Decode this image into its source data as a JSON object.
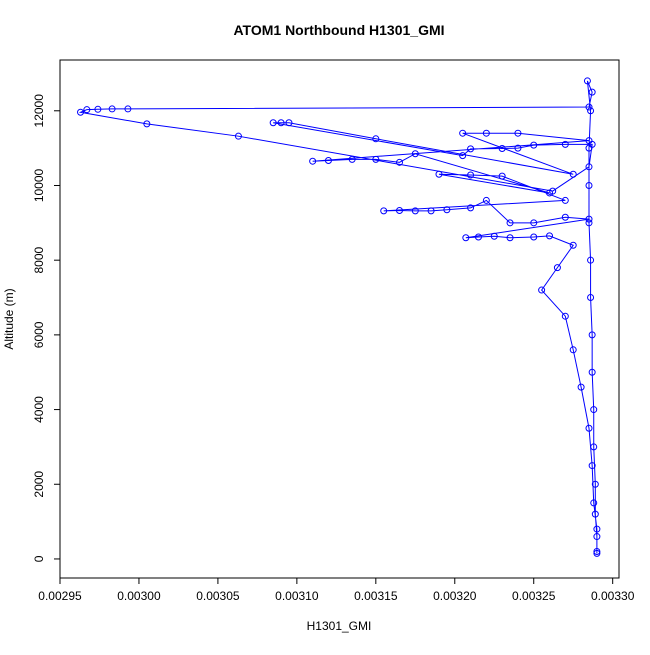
{
  "chart_data": {
    "type": "line",
    "markers": true,
    "title": "ATOM1 Northbound H1301_GMI",
    "x_label": "H1301_GMI",
    "y_label": "Altitude (m)",
    "color": "#0000ff",
    "xlim": [
      0.00295,
      0.003304
    ],
    "ylim": [
      -510,
      13360
    ],
    "xticks": [
      0.00295,
      {
        "value": 0.003,
        "label": "0.00300"
      },
      0.00305,
      {
        "value": 0.0031,
        "label": "0.00310"
      },
      0.00315,
      {
        "value": 0.0032,
        "label": "0.00320"
      },
      0.00325,
      {
        "value": 0.0033,
        "label": "0.00330"
      }
    ],
    "yticks": [
      0,
      2000,
      4000,
      6000,
      8000,
      10000,
      12000
    ],
    "x": [
      0.00329,
      0.00329,
      0.003289,
      0.003289,
      0.003288,
      0.003288,
      0.003287,
      0.003287,
      0.003286,
      0.003286,
      0.003285,
      0.003285,
      0.003285,
      0.003286,
      0.003284,
      0.003287,
      0.003285,
      0.002993,
      0.002983,
      0.002974,
      0.002967,
      0.002963,
      0.003005,
      0.003063,
      0.003262,
      0.003285,
      0.003287,
      0.00327,
      0.00325,
      0.00324,
      0.00323,
      0.00321,
      0.003205,
      0.003085,
      0.00309,
      0.003095,
      0.00315,
      0.003275,
      0.003205,
      0.00322,
      0.00324,
      0.003285,
      0.00311,
      0.00312,
      0.003135,
      0.00315,
      0.003165,
      0.003175,
      0.00326,
      0.00319,
      0.00321,
      0.00323,
      0.00327,
      0.003155,
      0.003165,
      0.003175,
      0.003185,
      0.003195,
      0.00321,
      0.00322,
      0.003235,
      0.00325,
      0.00327,
      0.003285,
      0.003207,
      0.003215,
      0.003225,
      0.003235,
      0.00325,
      0.00326,
      0.003275,
      0.003265,
      0.003255,
      0.00327,
      0.003275,
      0.00328,
      0.003285,
      0.003287,
      0.003288,
      0.00329,
      0.00329
    ],
    "values": [
      150,
      600,
      1200,
      2000,
      3000,
      4000,
      5000,
      6000,
      7000,
      8000,
      9000,
      10000,
      11000,
      12000,
      12800,
      12500,
      12100,
      12050,
      12050,
      12040,
      12030,
      11960,
      11650,
      11320,
      9850,
      10500,
      11100,
      11100,
      11080,
      11000,
      10990,
      10980,
      10800,
      11680,
      11680,
      11680,
      11250,
      10300,
      11400,
      11400,
      11400,
      11200,
      10650,
      10670,
      10700,
      10700,
      10620,
      10850,
      9800,
      10300,
      10280,
      10250,
      9600,
      9320,
      9330,
      9320,
      9320,
      9350,
      9400,
      9600,
      9000,
      9000,
      9150,
      9100,
      8600,
      8620,
      8640,
      8600,
      8620,
      8650,
      8400,
      7800,
      7200,
      6500,
      5600,
      4600,
      3500,
      2500,
      1500,
      800,
      200
    ]
  }
}
